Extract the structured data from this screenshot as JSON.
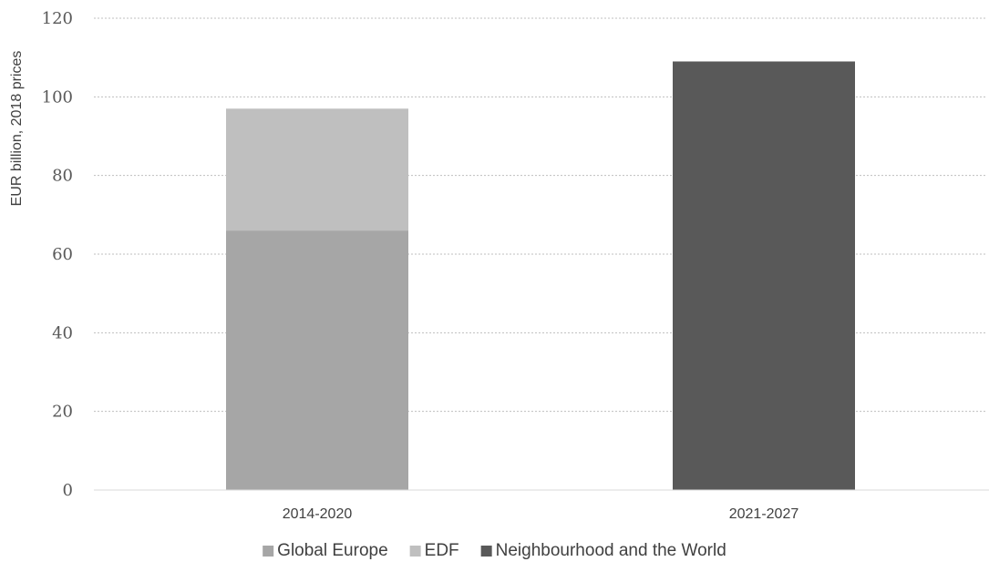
{
  "chart_data": {
    "type": "bar",
    "stacked": true,
    "title": "",
    "xlabel": "",
    "ylabel": "EUR billion, 2018 prices",
    "ylim": [
      0,
      120
    ],
    "yticks": [
      0,
      20,
      40,
      60,
      80,
      100,
      120
    ],
    "categories": [
      "2014-2020",
      "2021-2027"
    ],
    "series": [
      {
        "name": "Global Europe",
        "color": "#a6a6a6",
        "values": [
          66,
          0
        ]
      },
      {
        "name": "EDF",
        "color": "#bfbfbf",
        "values": [
          31,
          0
        ]
      },
      {
        "name": "Neighbourhood and the World",
        "color": "#595959",
        "values": [
          0,
          109
        ]
      }
    ],
    "grid": true,
    "legend_position": "bottom"
  }
}
